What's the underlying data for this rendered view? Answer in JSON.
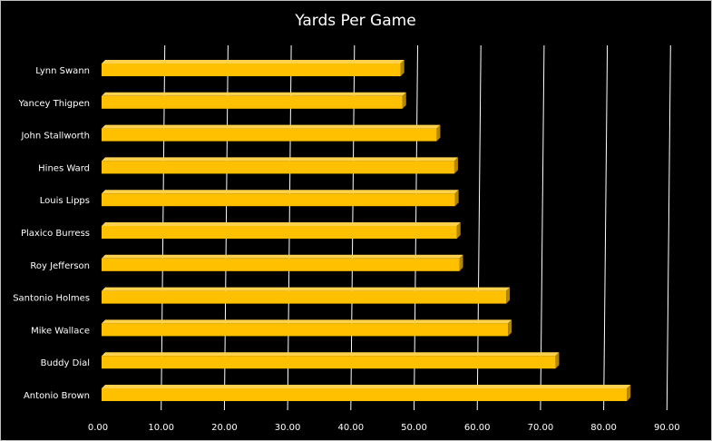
{
  "chart_data": {
    "type": "bar",
    "orientation": "horizontal",
    "title": "Yards Per Game",
    "xlabel": "",
    "ylabel": "",
    "categories": [
      "Lynn Swann",
      "Yancey Thigpen",
      "John Stallworth",
      "Hines Ward",
      "Louis Lipps",
      "Plaxico Burress",
      "Roy Jefferson",
      "Santonio Holmes",
      "Mike Wallace",
      "Buddy  Dial",
      "Antonio Brown"
    ],
    "values": [
      47.3,
      47.6,
      53.0,
      55.8,
      55.9,
      56.2,
      56.6,
      64.0,
      64.3,
      71.8,
      83.1
    ],
    "xlim": [
      0,
      90
    ],
    "x_ticks": [
      "0.00",
      "10.00",
      "20.00",
      "30.00",
      "40.00",
      "50.00",
      "60.00",
      "70.00",
      "80.00",
      "90.00"
    ],
    "grid": true,
    "legend": false,
    "colors": {
      "bar_face": "#ffc000",
      "bar_top": "#ffd24d",
      "bar_side": "#b38600",
      "background": "#000000",
      "grid": "#ffffff"
    }
  }
}
